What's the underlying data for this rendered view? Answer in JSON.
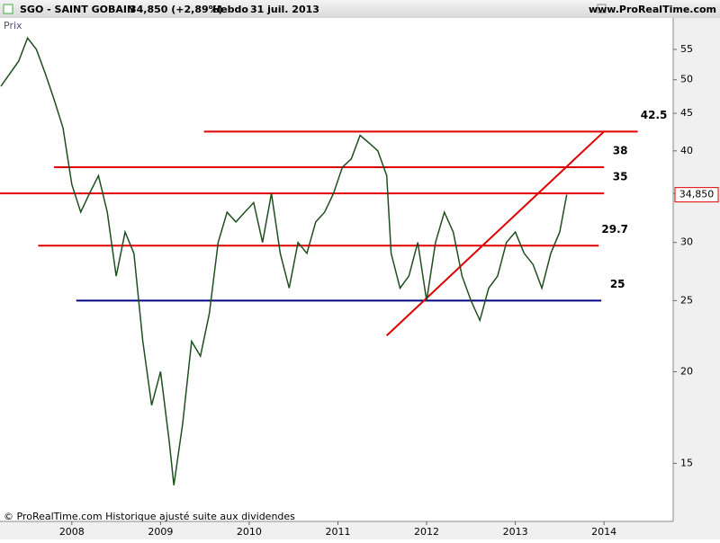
{
  "header": {
    "symbol": "SGO - SAINT GOBAIN",
    "quote": "34,850 (+2,89%)",
    "period": "Hebdo",
    "date": "31 juil. 2013",
    "site": "www.ProRealTime.com"
  },
  "footer": "© ProRealTime.com Historique ajusté suite aux dividendes",
  "chart_data": {
    "type": "line",
    "log_scale": true,
    "x": [
      2007.2,
      2007.4,
      2007.5,
      2007.6,
      2007.7,
      2007.8,
      2007.9,
      2008.0,
      2008.1,
      2008.2,
      2008.3,
      2008.4,
      2008.5,
      2008.6,
      2008.7,
      2008.8,
      2008.9,
      2009.0,
      2009.1,
      2009.15,
      2009.25,
      2009.35,
      2009.45,
      2009.55,
      2009.65,
      2009.75,
      2009.85,
      2009.95,
      2010.05,
      2010.15,
      2010.25,
      2010.35,
      2010.45,
      2010.55,
      2010.65,
      2010.75,
      2010.85,
      2010.95,
      2011.05,
      2011.15,
      2011.25,
      2011.35,
      2011.45,
      2011.55,
      2011.6,
      2011.7,
      2011.8,
      2011.9,
      2012.0,
      2012.1,
      2012.2,
      2012.3,
      2012.4,
      2012.5,
      2012.6,
      2012.7,
      2012.8,
      2012.9,
      2013.0,
      2013.1,
      2013.2,
      2013.3,
      2013.4,
      2013.5,
      2013.58
    ],
    "series": [
      {
        "name": "Prix",
        "color": "#1f4f1f",
        "values": [
          49,
          53,
          57,
          55,
          51,
          47,
          43,
          36,
          33,
          35,
          37,
          33,
          27,
          31,
          29,
          22,
          18,
          20,
          16,
          14,
          17,
          22,
          21,
          24,
          30,
          33,
          32,
          33,
          34,
          30,
          35,
          29,
          26,
          30,
          29,
          32,
          33,
          35,
          38,
          39,
          42,
          41,
          40,
          37,
          29,
          26,
          27,
          30,
          25,
          30,
          33,
          31,
          27,
          25,
          23.5,
          26,
          27,
          30,
          31,
          29,
          28,
          26,
          29,
          31,
          34.85
        ]
      }
    ],
    "last_price": {
      "value": 34.85,
      "label": "34,850"
    },
    "xlim": [
      2007.19,
      2014.78
    ],
    "xticks": [
      2008,
      2009,
      2010,
      2011,
      2012,
      2013,
      2014
    ],
    "ylim": [
      12.5,
      60.7
    ],
    "yticks": [
      15,
      20,
      25,
      30,
      35,
      40,
      45,
      50,
      55
    ],
    "levels": [
      {
        "value": 42.5,
        "x": [
          2009.49,
          2014.38
        ],
        "color": "#e00000"
      },
      {
        "value": 38,
        "x": [
          2007.8,
          2014.0
        ],
        "color": "#e00000"
      },
      {
        "value": 35,
        "x": [
          2007.19,
          2014.0
        ],
        "color": "#e00000"
      },
      {
        "value": 29.7,
        "x": [
          2007.62,
          2013.94
        ],
        "color": "#e00000"
      },
      {
        "value": 25,
        "x": [
          2008.05,
          2013.97
        ],
        "color": "#000080"
      }
    ],
    "trendline": {
      "x": [
        2011.55,
        2014.0
      ],
      "y": [
        22.4,
        42.5
      ],
      "color": "#e00000"
    }
  }
}
